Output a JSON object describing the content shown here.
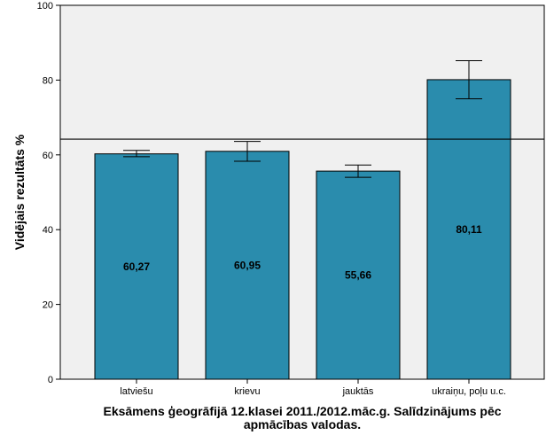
{
  "chart_data": {
    "type": "bar",
    "categories": [
      "latviešu",
      "krievu",
      "jauktās",
      "ukraiņu, poļu u.c."
    ],
    "values": [
      60.27,
      60.95,
      55.66,
      80.11
    ],
    "value_labels": [
      "60,27",
      "60,95",
      "55,66",
      "80,11"
    ],
    "error_low": [
      59.5,
      58.3,
      54.0,
      75.0
    ],
    "error_high": [
      61.2,
      63.6,
      57.3,
      85.2
    ],
    "reference_line": 64.2,
    "ylabel": "Vidējais rezultāts %",
    "xlabel_lines": [
      "Eksāmens ģeogrāfijā 12.klasei 2011./2012.māc.g. Salīdzinājums pēc",
      "apmācības valodas."
    ],
    "ylim": [
      0,
      100
    ],
    "ytick_values": [
      0,
      20,
      40,
      60,
      80,
      100
    ],
    "ytick_labels": [
      "0",
      "20",
      "40",
      "60",
      "80",
      "100"
    ],
    "grid": false,
    "colors": {
      "bar": "#2a8cad",
      "plot_background": "#f0f0f0",
      "axis": "#000000"
    }
  }
}
